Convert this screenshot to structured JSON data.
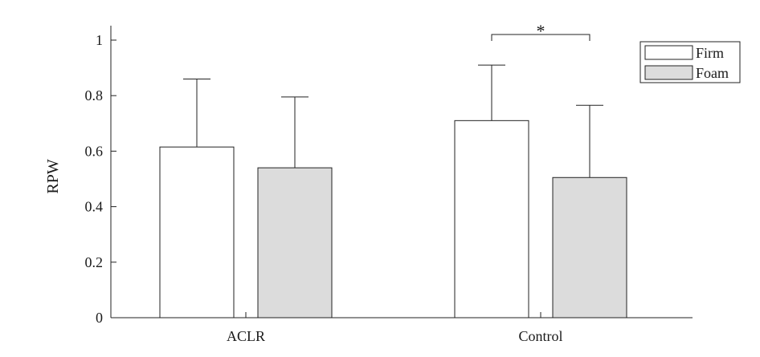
{
  "chart_data": {
    "type": "bar",
    "title": "",
    "xlabel": "",
    "ylabel": "RPW",
    "ylim": [
      0,
      1.05
    ],
    "yticks": [
      0,
      0.2,
      0.4,
      0.6,
      0.8,
      1
    ],
    "ytick_labels": [
      "0",
      "0.2",
      "0.4",
      "0.6",
      "0.8",
      "1"
    ],
    "categories": [
      "ACLR",
      "Control"
    ],
    "series": [
      {
        "name": "Firm",
        "color": "#ffffff",
        "values": [
          0.615,
          0.71
        ],
        "error_upper": [
          0.86,
          0.91
        ]
      },
      {
        "name": "Foam",
        "color": "#dcdcdc",
        "values": [
          0.54,
          0.505
        ],
        "error_upper": [
          0.795,
          0.765
        ]
      }
    ],
    "significance": [
      {
        "category": "Control",
        "between": [
          "Firm",
          "Foam"
        ],
        "label": "*"
      }
    ],
    "legend": {
      "position": "top-right",
      "entries": [
        "Firm",
        "Foam"
      ]
    },
    "grid": false
  }
}
